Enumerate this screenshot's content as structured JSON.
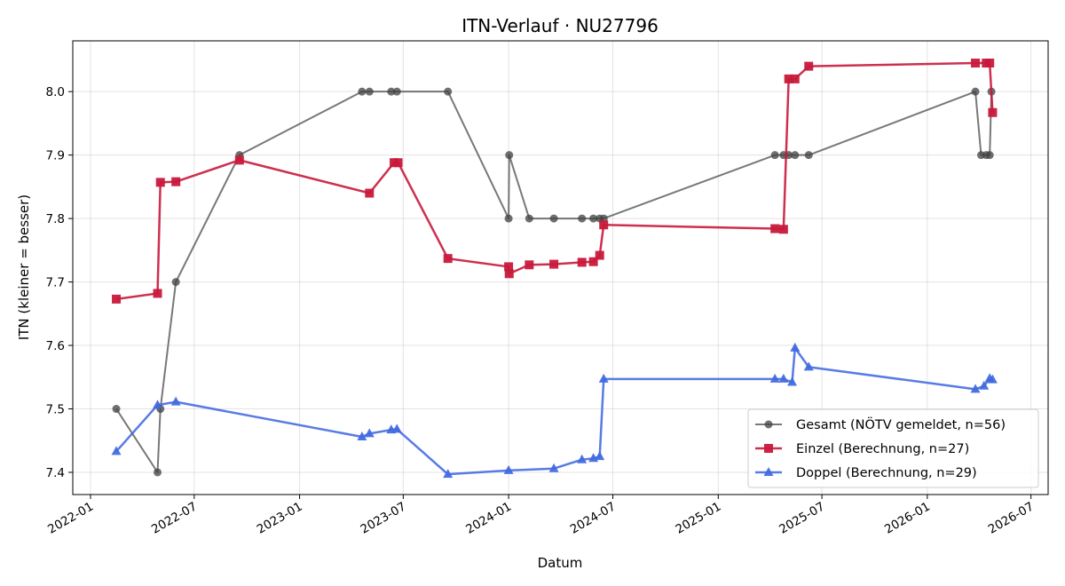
{
  "chart_data": {
    "type": "line",
    "title": "ITN-Verlauf · NU27796",
    "xlabel": "Datum",
    "ylabel": "ITN  (kleiner = besser)",
    "x_ticks": [
      "2022-01",
      "2022-07",
      "2023-01",
      "2023-07",
      "2024-01",
      "2024-07",
      "2025-01",
      "2025-07",
      "2026-01",
      "2026-07"
    ],
    "y_ticks": [
      "7.4",
      "7.5",
      "7.6",
      "7.7",
      "7.8",
      "7.9",
      "8.0"
    ],
    "xlim": [
      "2021-12-01",
      "2026-07-31"
    ],
    "ylim": [
      7.365,
      8.08
    ],
    "grid": true,
    "legend_position": "lower-right",
    "series": [
      {
        "name": "Gesamt (NÖTV gemeldet, n=56)",
        "color": "#444444",
        "marker": "circle",
        "points": [
          [
            "2022-02-15",
            7.5
          ],
          [
            "2022-04-28",
            7.4
          ],
          [
            "2022-05-03",
            7.5
          ],
          [
            "2022-05-30",
            7.7
          ],
          [
            "2022-09-18",
            7.9
          ],
          [
            "2023-04-20",
            8.0
          ],
          [
            "2023-05-03",
            8.0
          ],
          [
            "2023-06-10",
            8.0
          ],
          [
            "2023-06-20",
            8.0
          ],
          [
            "2023-09-17",
            8.0
          ],
          [
            "2024-01-01",
            7.8
          ],
          [
            "2024-01-02",
            7.9
          ],
          [
            "2024-02-06",
            7.8
          ],
          [
            "2024-03-20",
            7.8
          ],
          [
            "2024-05-08",
            7.8
          ],
          [
            "2024-05-28",
            7.8
          ],
          [
            "2024-06-08",
            7.8
          ],
          [
            "2024-06-15",
            7.8
          ],
          [
            "2025-04-10",
            7.9
          ],
          [
            "2025-04-25",
            7.9
          ],
          [
            "2025-05-04",
            7.9
          ],
          [
            "2025-05-15",
            7.9
          ],
          [
            "2025-06-08",
            7.9
          ],
          [
            "2026-03-26",
            8.0
          ],
          [
            "2026-04-05",
            7.9
          ],
          [
            "2026-04-14",
            7.9
          ],
          [
            "2026-04-20",
            7.9
          ],
          [
            "2026-04-23",
            8.0
          ]
        ]
      },
      {
        "name": "Einzel (Berechnung, n=27)",
        "color": "#c8193c",
        "marker": "square",
        "points": [
          [
            "2022-02-15",
            7.673
          ],
          [
            "2022-04-28",
            7.682
          ],
          [
            "2022-05-03",
            7.857
          ],
          [
            "2022-05-30",
            7.858
          ],
          [
            "2022-09-18",
            7.892
          ],
          [
            "2023-05-03",
            7.84
          ],
          [
            "2023-06-15",
            7.888
          ],
          [
            "2023-06-22",
            7.888
          ],
          [
            "2023-09-17",
            7.737
          ],
          [
            "2024-01-01",
            7.724
          ],
          [
            "2024-01-02",
            7.713
          ],
          [
            "2024-02-06",
            7.727
          ],
          [
            "2024-03-20",
            7.728
          ],
          [
            "2024-05-08",
            7.731
          ],
          [
            "2024-05-28",
            7.732
          ],
          [
            "2024-06-08",
            7.742
          ],
          [
            "2024-06-15",
            7.79
          ],
          [
            "2025-04-10",
            7.784
          ],
          [
            "2025-04-25",
            7.783
          ],
          [
            "2025-05-04",
            8.02
          ],
          [
            "2025-05-15",
            8.02
          ],
          [
            "2025-06-08",
            8.04
          ],
          [
            "2026-03-26",
            8.045
          ],
          [
            "2026-04-14",
            8.045
          ],
          [
            "2026-04-20",
            8.045
          ],
          [
            "2026-04-25",
            7.967
          ]
        ]
      },
      {
        "name": "Doppel (Berechnung, n=29)",
        "color": "#4169e1",
        "marker": "triangle",
        "points": [
          [
            "2022-02-15",
            7.433
          ],
          [
            "2022-04-28",
            7.506
          ],
          [
            "2022-05-30",
            7.511
          ],
          [
            "2023-04-20",
            7.456
          ],
          [
            "2023-05-03",
            7.461
          ],
          [
            "2023-06-10",
            7.467
          ],
          [
            "2023-06-20",
            7.468
          ],
          [
            "2023-09-17",
            7.397
          ],
          [
            "2024-01-01",
            7.403
          ],
          [
            "2024-03-20",
            7.406
          ],
          [
            "2024-05-08",
            7.42
          ],
          [
            "2024-05-28",
            7.422
          ],
          [
            "2024-06-08",
            7.425
          ],
          [
            "2024-06-15",
            7.547
          ],
          [
            "2025-04-10",
            7.547
          ],
          [
            "2025-04-25",
            7.547
          ],
          [
            "2025-05-10",
            7.542
          ],
          [
            "2025-05-15",
            7.596
          ],
          [
            "2025-06-08",
            7.566
          ],
          [
            "2026-03-26",
            7.531
          ],
          [
            "2026-04-10",
            7.536
          ],
          [
            "2026-04-20",
            7.548
          ],
          [
            "2026-04-25",
            7.546
          ]
        ]
      }
    ]
  }
}
